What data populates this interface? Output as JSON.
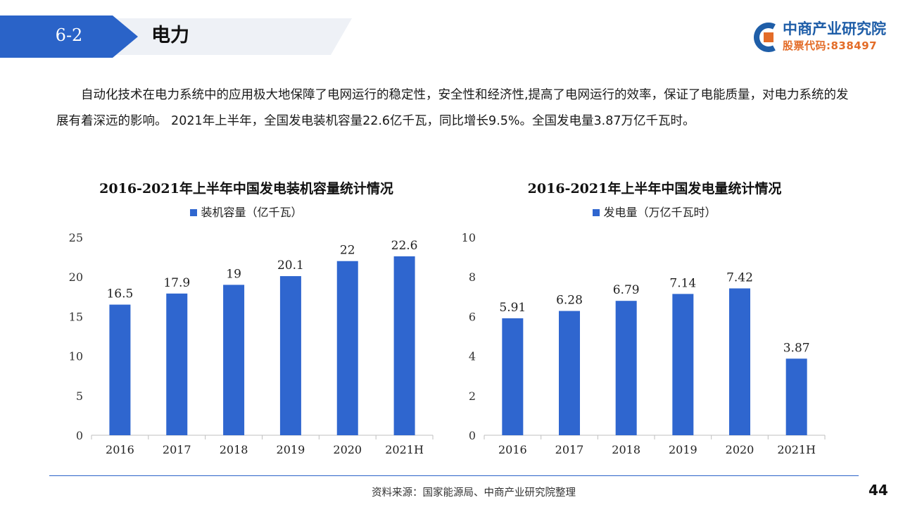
{
  "header": {
    "section_number": "6-2",
    "section_title": "电力"
  },
  "logo": {
    "name": "中商产业研究院",
    "stock_code": "股票代码:838497"
  },
  "intro": {
    "paragraph": "自动化技术在电力系统中的应用极大地保障了电网运行的稳定性，安全性和经济性,提高了电网运行的效率，保证了电能质量，对电力系统的发展有着深远的影响。 2021年上半年，全国发电装机容量22.6亿千瓦，同比增长9.5%。全国发电量3.87万亿千瓦时。"
  },
  "colors": {
    "bar": "#2f66cf",
    "header_band": "#2a63c8",
    "header_band_light": "#eef1f6",
    "logo_blue": "#1f5ea8",
    "logo_orange": "#e36c28",
    "axis": "#bfbfbf"
  },
  "chart_data": [
    {
      "type": "bar",
      "title": "2016-2021年上半年中国发电装机容量统计情况",
      "categories": [
        "2016",
        "2017",
        "2018",
        "2019",
        "2020",
        "2021H"
      ],
      "series": [
        {
          "name": "装机容量（亿千瓦）",
          "values": [
            16.5,
            17.9,
            19,
            20.1,
            22,
            22.6
          ]
        }
      ],
      "value_labels": [
        "16.5",
        "17.9",
        "19",
        "20.1",
        "22",
        "22.6"
      ],
      "y_ticks": [
        "0",
        "5",
        "10",
        "15",
        "20",
        "25"
      ],
      "ylim": [
        0,
        25
      ],
      "grid": false,
      "legend_position": "top"
    },
    {
      "type": "bar",
      "title": "2016-2021年上半年中国发电量统计情况",
      "categories": [
        "2016",
        "2017",
        "2018",
        "2019",
        "2020",
        "2021H"
      ],
      "series": [
        {
          "name": "发电量（万亿千瓦时）",
          "values": [
            5.91,
            6.28,
            6.79,
            7.14,
            7.42,
            3.87
          ]
        }
      ],
      "value_labels": [
        "5.91",
        "6.28",
        "6.79",
        "7.14",
        "7.42",
        "3.87"
      ],
      "y_ticks": [
        "0",
        "2",
        "4",
        "6",
        "8",
        "10"
      ],
      "ylim": [
        0,
        10
      ],
      "grid": false,
      "legend_position": "top"
    }
  ],
  "footer": {
    "source": "资料来源：国家能源局、中商产业研究院整理",
    "page_number": "44"
  }
}
